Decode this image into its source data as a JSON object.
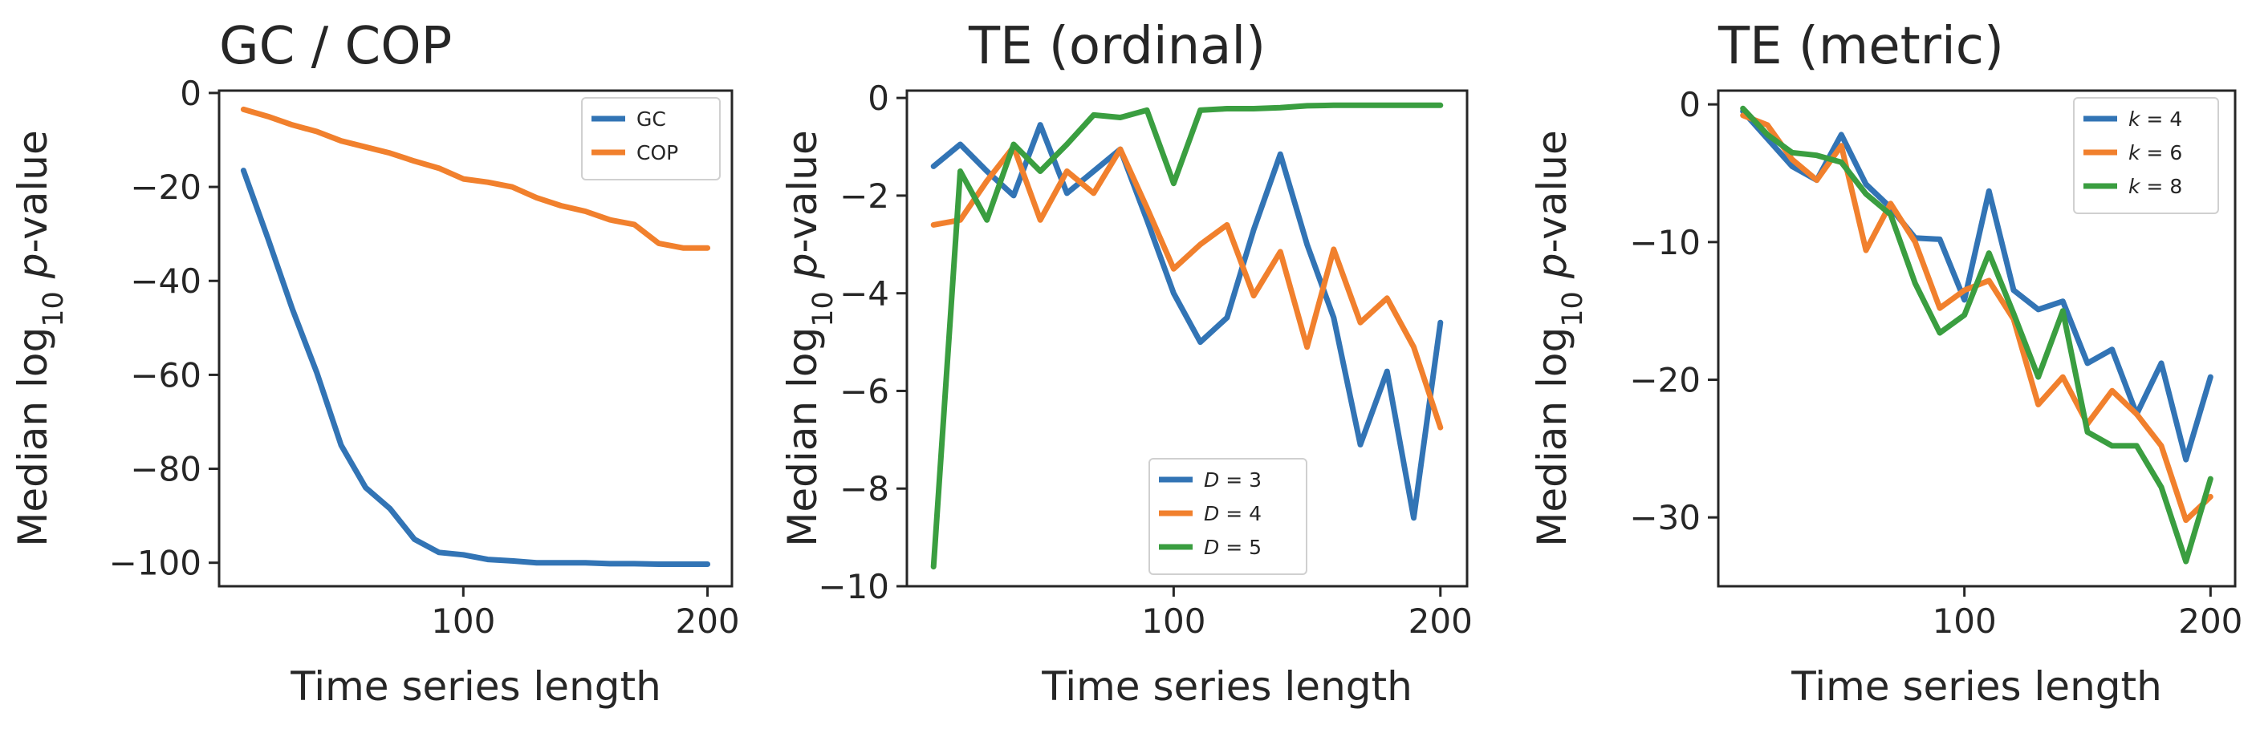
{
  "colors": {
    "blue": "#3274b5",
    "orange": "#f1802d",
    "green": "#3a9e40"
  },
  "chart_data": [
    {
      "type": "line",
      "title": "GC / COP",
      "xlabel": "Time series length",
      "ylabel": {
        "prefix": "Median log",
        "sub": "10",
        "mid": " ",
        "ital": "p",
        "suffix": "-value"
      },
      "xlim": [
        0,
        210
      ],
      "ylim": [
        -105,
        0.5
      ],
      "xticks": [
        100,
        200
      ],
      "yticks": [
        0,
        -20,
        -40,
        -60,
        -80,
        -100
      ],
      "xtick_labels": [
        "100",
        "200"
      ],
      "ytick_labels": [
        "0",
        "−20",
        "−40",
        "−60",
        "−80",
        "−100"
      ],
      "legend": {
        "placement": "top-right"
      },
      "x": [
        10,
        20,
        30,
        40,
        50,
        60,
        70,
        80,
        90,
        100,
        110,
        120,
        130,
        140,
        150,
        160,
        170,
        180,
        190,
        200
      ],
      "series": [
        {
          "name": "GC",
          "legend_label": {
            "plain": "GC"
          },
          "color": "blue",
          "values": [
            -16.5,
            -31,
            -46,
            -59.5,
            -75,
            -84,
            -88.5,
            -95,
            -97.8,
            -98.3,
            -99.3,
            -99.6,
            -100,
            -100,
            -100,
            -100.2,
            -100.2,
            -100.3,
            -100.3,
            -100.3
          ]
        },
        {
          "name": "COP",
          "legend_label": {
            "plain": "COP"
          },
          "color": "orange",
          "values": [
            -3.5,
            -5,
            -6.8,
            -8.2,
            -10.2,
            -11.5,
            -12.8,
            -14.5,
            -16,
            -18.3,
            -19,
            -20,
            -22.3,
            -24,
            -25.2,
            -27,
            -28,
            -32,
            -33,
            -33
          ]
        }
      ]
    },
    {
      "type": "line",
      "title": "TE (ordinal)",
      "xlabel": "Time series length",
      "ylabel": {
        "prefix": "Median log",
        "sub": "10",
        "mid": " ",
        "ital": "p",
        "suffix": "-value"
      },
      "xlim": [
        0,
        210
      ],
      "ylim": [
        -10,
        0.15
      ],
      "xticks": [
        100,
        200
      ],
      "yticks": [
        0,
        -2,
        -4,
        -6,
        -8,
        -10
      ],
      "xtick_labels": [
        "100",
        "200"
      ],
      "ytick_labels": [
        "0",
        "−2",
        "−4",
        "−6",
        "−8",
        "−10"
      ],
      "legend": {
        "placement": "lower-center"
      },
      "x": [
        10,
        20,
        30,
        40,
        50,
        60,
        70,
        80,
        90,
        100,
        110,
        120,
        130,
        140,
        150,
        160,
        170,
        180,
        190,
        200
      ],
      "series": [
        {
          "name": "D=3",
          "legend_label": {
            "ital": "D",
            "plain": " = 3"
          },
          "color": "blue",
          "values": [
            -1.4,
            -0.95,
            -1.5,
            -2,
            -0.55,
            -1.95,
            -1.5,
            -1.05,
            -2.5,
            -4,
            -5,
            -4.5,
            -2.7,
            -1.15,
            -3,
            -4.5,
            -7.1,
            -5.6,
            -8.6,
            -4.6
          ]
        },
        {
          "name": "D=4",
          "legend_label": {
            "ital": "D",
            "plain": " = 4"
          },
          "color": "orange",
          "values": [
            -2.6,
            -2.5,
            -1.7,
            -1,
            -2.5,
            -1.5,
            -1.95,
            -1.05,
            -2.25,
            -3.5,
            -3,
            -2.6,
            -4.05,
            -3.15,
            -5.1,
            -3.1,
            -4.6,
            -4.1,
            -5.1,
            -6.75
          ]
        },
        {
          "name": "D=5",
          "legend_label": {
            "ital": "D",
            "plain": " = 5"
          },
          "color": "green",
          "values": [
            -9.6,
            -1.5,
            -2.5,
            -0.95,
            -1.5,
            -0.95,
            -0.35,
            -0.4,
            -0.25,
            -1.75,
            -0.25,
            -0.22,
            -0.22,
            -0.2,
            -0.16,
            -0.15,
            -0.15,
            -0.15,
            -0.15,
            -0.15
          ]
        }
      ]
    },
    {
      "type": "line",
      "title": "TE (metric)",
      "xlabel": "Time series length",
      "ylabel": {
        "prefix": "Median log",
        "sub": "10",
        "mid": " ",
        "ital": "p",
        "suffix": "-value"
      },
      "xlim": [
        0,
        210
      ],
      "ylim": [
        -35,
        1
      ],
      "xticks": [
        100,
        200
      ],
      "yticks": [
        0,
        -10,
        -20,
        -30
      ],
      "xtick_labels": [
        "100",
        "200"
      ],
      "ytick_labels": [
        "0",
        "−10",
        "−20",
        "−30"
      ],
      "legend": {
        "placement": "top-right"
      },
      "x": [
        10,
        20,
        30,
        40,
        50,
        60,
        70,
        80,
        90,
        100,
        110,
        120,
        130,
        140,
        150,
        160,
        170,
        180,
        190,
        200
      ],
      "series": [
        {
          "name": "k=4",
          "legend_label": {
            "ital": "k",
            "plain": " = 4"
          },
          "color": "blue",
          "values": [
            -0.5,
            -2.5,
            -4.5,
            -5.5,
            -2.2,
            -5.8,
            -7.5,
            -9.7,
            -9.8,
            -14.2,
            -6.3,
            -13.5,
            -14.9,
            -14.3,
            -18.8,
            -17.8,
            -22.5,
            -18.8,
            -25.8,
            -19.8
          ]
        },
        {
          "name": "k=6",
          "legend_label": {
            "ital": "k",
            "plain": " = 6"
          },
          "color": "orange",
          "values": [
            -0.8,
            -1.5,
            -4,
            -5.5,
            -3,
            -10.6,
            -7.2,
            -10,
            -14.8,
            -13.5,
            -12.8,
            -15.6,
            -21.8,
            -19.8,
            -23.2,
            -20.8,
            -22.5,
            -24.8,
            -30.2,
            -28.5
          ]
        },
        {
          "name": "k=8",
          "legend_label": {
            "ital": "k",
            "plain": " = 8"
          },
          "color": "green",
          "values": [
            -0.3,
            -2.2,
            -3.5,
            -3.7,
            -4.2,
            -6.5,
            -8,
            -13,
            -16.6,
            -15.3,
            -10.8,
            -15.2,
            -19.8,
            -15,
            -23.8,
            -24.8,
            -24.8,
            -27.8,
            -33.2,
            -27.2
          ]
        }
      ]
    }
  ]
}
